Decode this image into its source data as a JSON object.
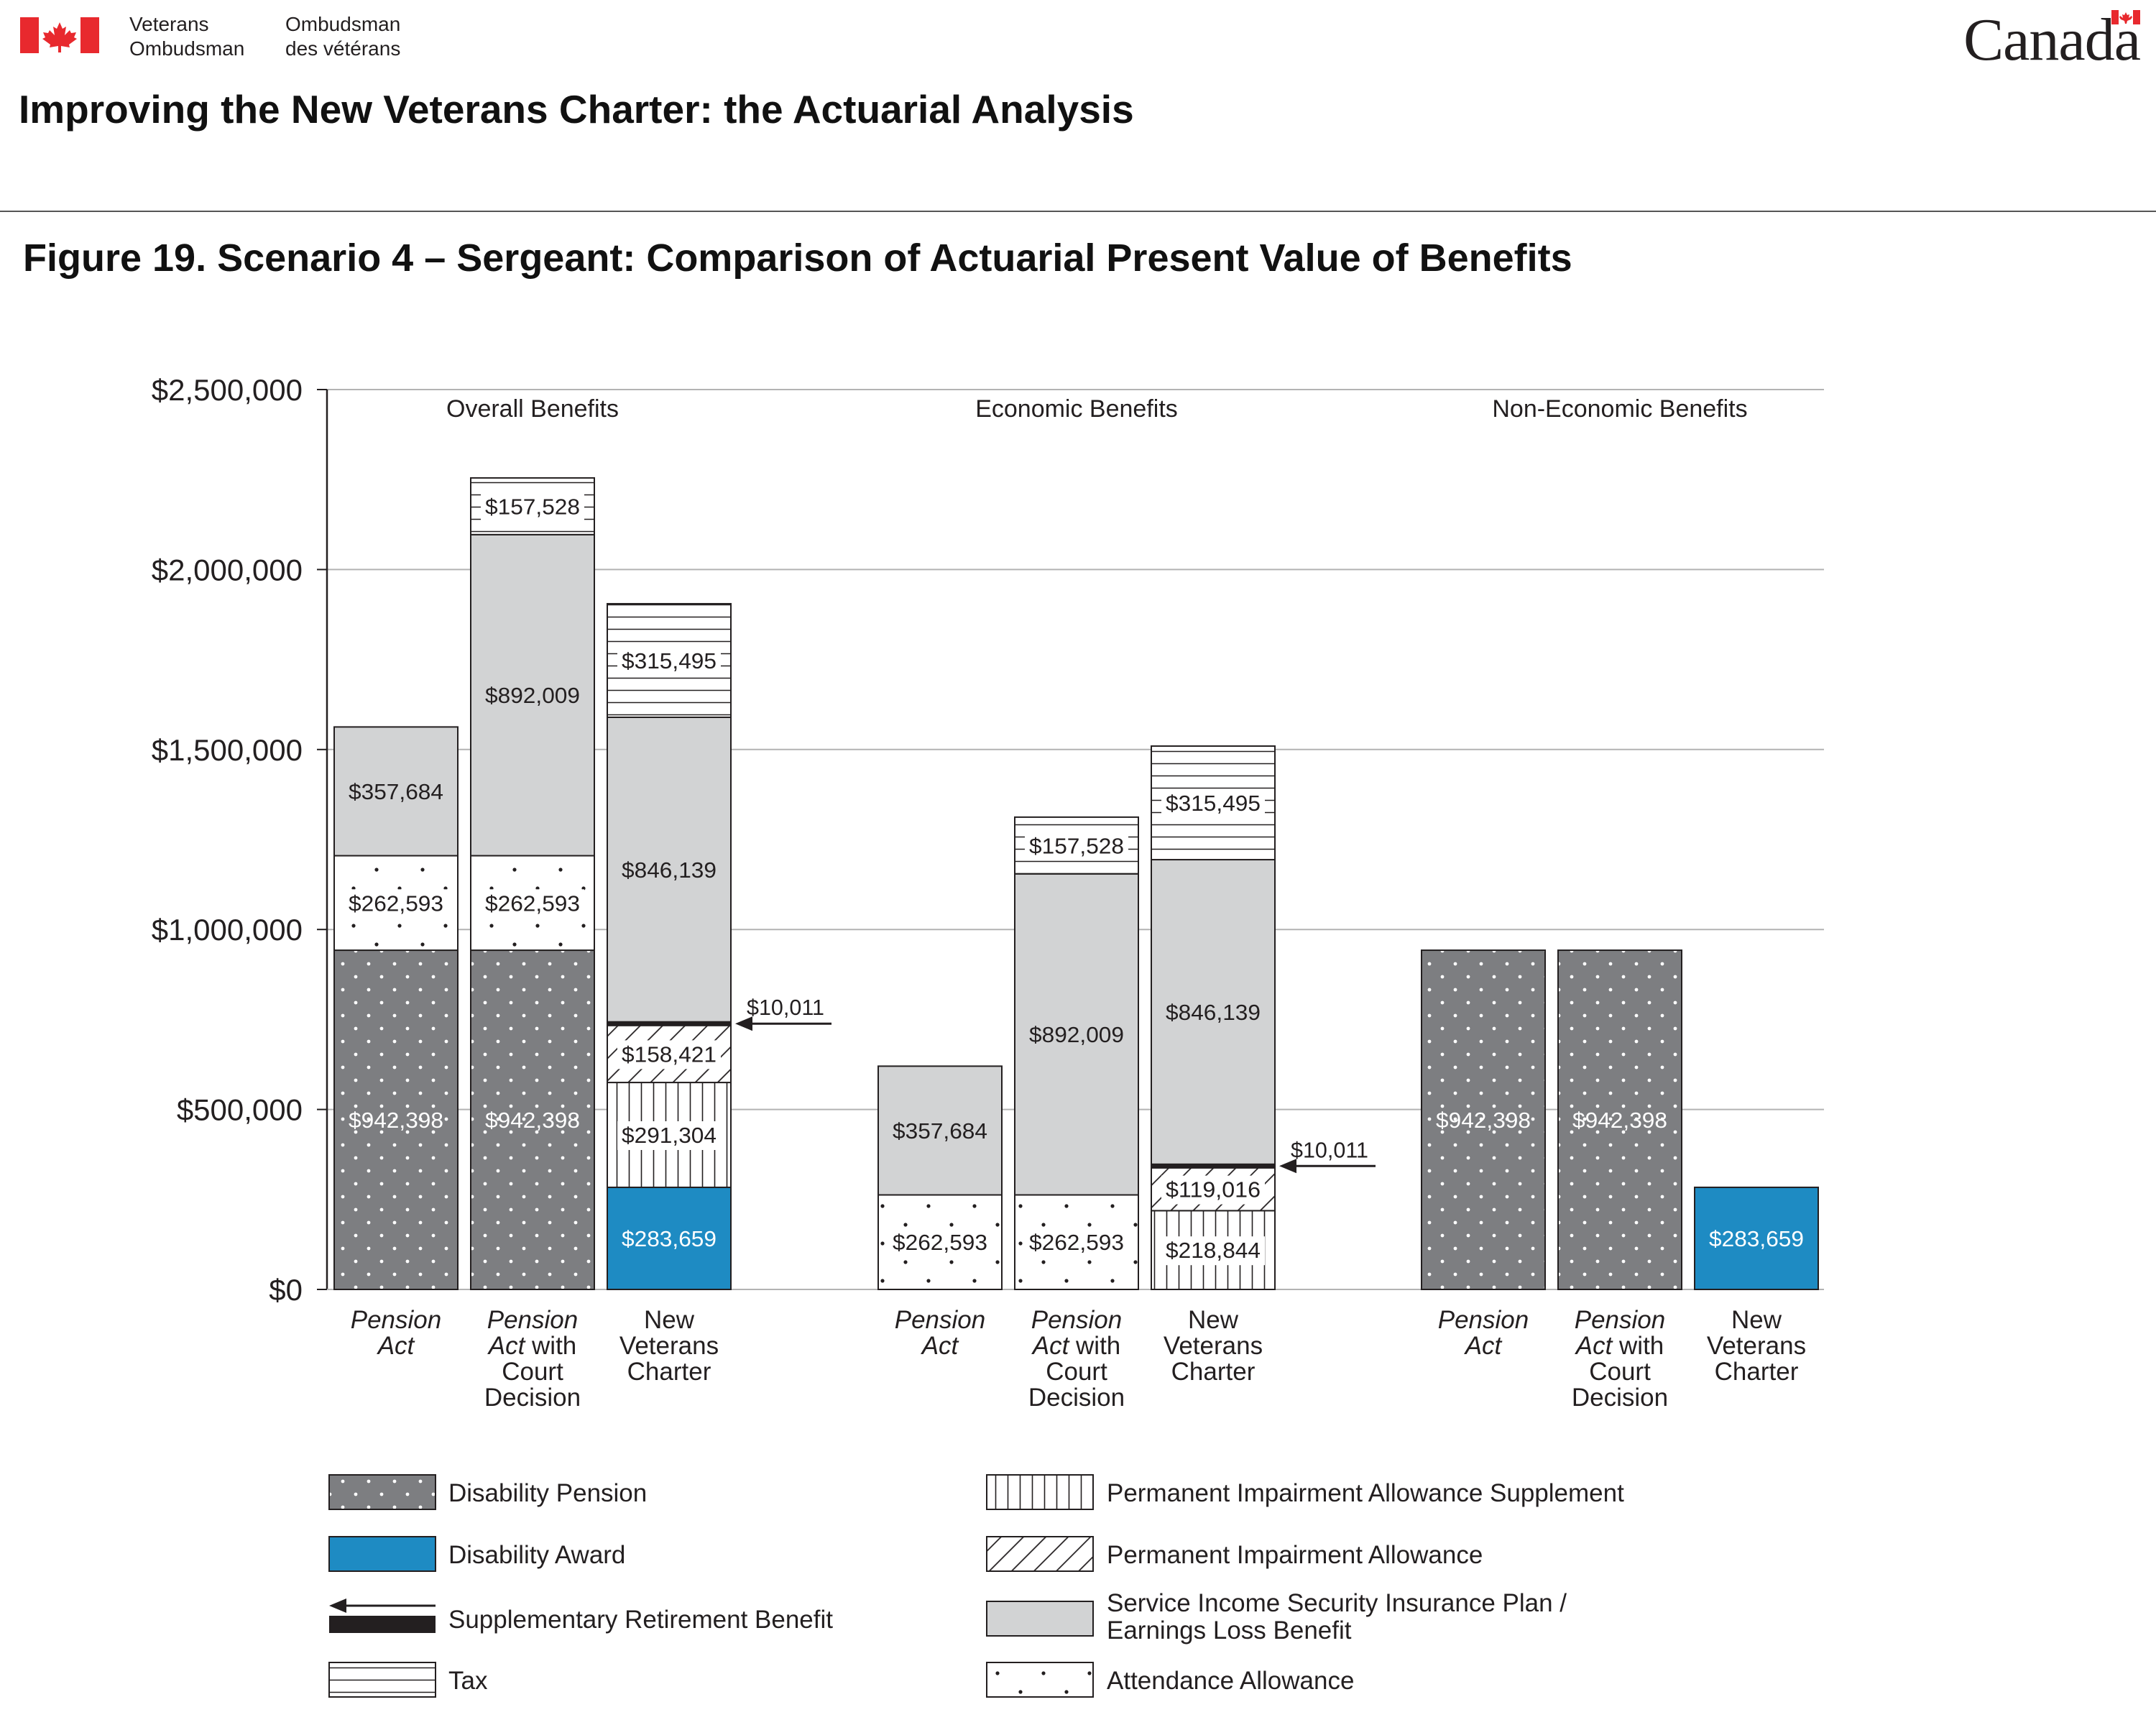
{
  "header": {
    "org_en_line1": "Veterans",
    "org_en_line2": "Ombudsman",
    "org_fr_line1": "Ombudsman",
    "org_fr_line2": "des vétérans",
    "wordmark": "Canada",
    "doc_title": "Improving the New Veterans Charter: the Actuarial Analysis",
    "figure_title": "Figure 19. Scenario 4 – Sergeant: Comparison of Actuarial Present Value of Benefits"
  },
  "colors": {
    "disability_pension": "#7d7e81",
    "disability_award": "#1e8bc3",
    "service_income": "#d2d3d4",
    "supplementary_retirement": "#231f20",
    "pattern_fill": "#ffffff",
    "flag_red": "#e8292e",
    "gridline": "#b3b3b3",
    "text": "#231f20"
  },
  "chart_data": {
    "type": "bar",
    "stacked": true,
    "ylim": [
      0,
      2500000
    ],
    "yticks": [
      {
        "value": 0,
        "label": "$0"
      },
      {
        "value": 500000,
        "label": "$500,000"
      },
      {
        "value": 1000000,
        "label": "$1,000,000"
      },
      {
        "value": 1500000,
        "label": "$1,500,000"
      },
      {
        "value": 2000000,
        "label": "$2,000,000"
      },
      {
        "value": 2500000,
        "label": "$2,500,000"
      }
    ],
    "grid": true,
    "legend_position": "bottom",
    "series": [
      {
        "key": "disability_pension",
        "name": "Disability Pension",
        "fill": "dots-dark"
      },
      {
        "key": "disability_award",
        "name": "Disability Award",
        "fill": "solid-blue"
      },
      {
        "key": "supplementary_retirement",
        "name": "Supplementary Retirement Benefit",
        "fill": "solid-black"
      },
      {
        "key": "tax",
        "name": "Tax",
        "fill": "horizontal-lines"
      },
      {
        "key": "pia_supplement",
        "name": "Permanent Impairment Allowance Supplement",
        "fill": "vertical-lines"
      },
      {
        "key": "pia",
        "name": "Permanent Impairment Allowance",
        "fill": "diagonal-lines"
      },
      {
        "key": "service_income",
        "name": "Service Income Security Insurance Plan / Earnings Loss Benefit",
        "fill": "solid-gray"
      },
      {
        "key": "attendance_allowance",
        "name": "Attendance Allowance",
        "fill": "dots-light"
      }
    ],
    "legend_left": [
      "disability_pension",
      "disability_award",
      "supplementary_retirement",
      "tax"
    ],
    "legend_right": [
      "pia_supplement",
      "pia",
      "service_income",
      "attendance_allowance"
    ],
    "groups": [
      {
        "title": "Overall Benefits",
        "bars": [
          {
            "label": [
              "Pension",
              "Act"
            ],
            "italic": [
              true,
              true
            ],
            "segments": [
              {
                "series": "disability_pension",
                "value": 942398,
                "label": "$942,398"
              },
              {
                "series": "attendance_allowance",
                "value": 262593,
                "label": "$262,593"
              },
              {
                "series": "service_income",
                "value": 357684,
                "label": "$357,684"
              }
            ]
          },
          {
            "label": [
              "Pension",
              "Act with",
              "Court",
              "Decision"
            ],
            "italic": [
              true,
              "Act",
              false,
              false
            ],
            "segments": [
              {
                "series": "disability_pension",
                "value": 942398,
                "label": "$942,398"
              },
              {
                "series": "attendance_allowance",
                "value": 262593,
                "label": "$262,593"
              },
              {
                "series": "service_income",
                "value": 892009,
                "label": "$892,009"
              },
              {
                "series": "tax",
                "value": 157528,
                "label": "$157,528"
              }
            ]
          },
          {
            "label": [
              "New",
              "Veterans",
              "Charter"
            ],
            "italic": [
              false,
              false,
              false
            ],
            "segments": [
              {
                "series": "disability_award",
                "value": 283659,
                "label": "$283,659"
              },
              {
                "series": "pia_supplement",
                "value": 291304,
                "label": "$291,304"
              },
              {
                "series": "pia",
                "value": 158421,
                "label": "$158,421"
              },
              {
                "series": "supplementary_retirement",
                "value": 10011,
                "label": "$10,011",
                "callout": true
              },
              {
                "series": "service_income",
                "value": 846139,
                "label": "$846,139"
              },
              {
                "series": "tax",
                "value": 315495,
                "label": "$315,495"
              }
            ]
          }
        ]
      },
      {
        "title": "Economic Benefits",
        "bars": [
          {
            "label": [
              "Pension",
              "Act"
            ],
            "italic": [
              true,
              true
            ],
            "segments": [
              {
                "series": "attendance_allowance",
                "value": 262593,
                "label": "$262,593"
              },
              {
                "series": "service_income",
                "value": 357684,
                "label": "$357,684"
              }
            ]
          },
          {
            "label": [
              "Pension",
              "Act with",
              "Court",
              "Decision"
            ],
            "italic": [
              true,
              "Act",
              false,
              false
            ],
            "segments": [
              {
                "series": "attendance_allowance",
                "value": 262593,
                "label": "$262,593"
              },
              {
                "series": "service_income",
                "value": 892009,
                "label": "$892,009"
              },
              {
                "series": "tax",
                "value": 157528,
                "label": "$157,528"
              }
            ]
          },
          {
            "label": [
              "New",
              "Veterans",
              "Charter"
            ],
            "italic": [
              false,
              false,
              false
            ],
            "segments": [
              {
                "series": "pia_supplement",
                "value": 218844,
                "label": "$218,844"
              },
              {
                "series": "pia",
                "value": 119016,
                "label": "$119,016"
              },
              {
                "series": "supplementary_retirement",
                "value": 10011,
                "label": "$10,011",
                "callout": true
              },
              {
                "series": "service_income",
                "value": 846139,
                "label": "$846,139"
              },
              {
                "series": "tax",
                "value": 315495,
                "label": "$315,495"
              }
            ]
          }
        ]
      },
      {
        "title": "Non-Economic Benefits",
        "bars": [
          {
            "label": [
              "Pension",
              "Act"
            ],
            "italic": [
              true,
              true
            ],
            "segments": [
              {
                "series": "disability_pension",
                "value": 942398,
                "label": "$942,398"
              }
            ]
          },
          {
            "label": [
              "Pension",
              "Act with",
              "Court",
              "Decision"
            ],
            "italic": [
              true,
              "Act",
              false,
              false
            ],
            "segments": [
              {
                "series": "disability_pension",
                "value": 942398,
                "label": "$942,398"
              }
            ]
          },
          {
            "label": [
              "New",
              "Veterans",
              "Charter"
            ],
            "italic": [
              false,
              false,
              false
            ],
            "segments": [
              {
                "series": "disability_award",
                "value": 283659,
                "label": "$283,659"
              }
            ]
          }
        ]
      }
    ]
  }
}
